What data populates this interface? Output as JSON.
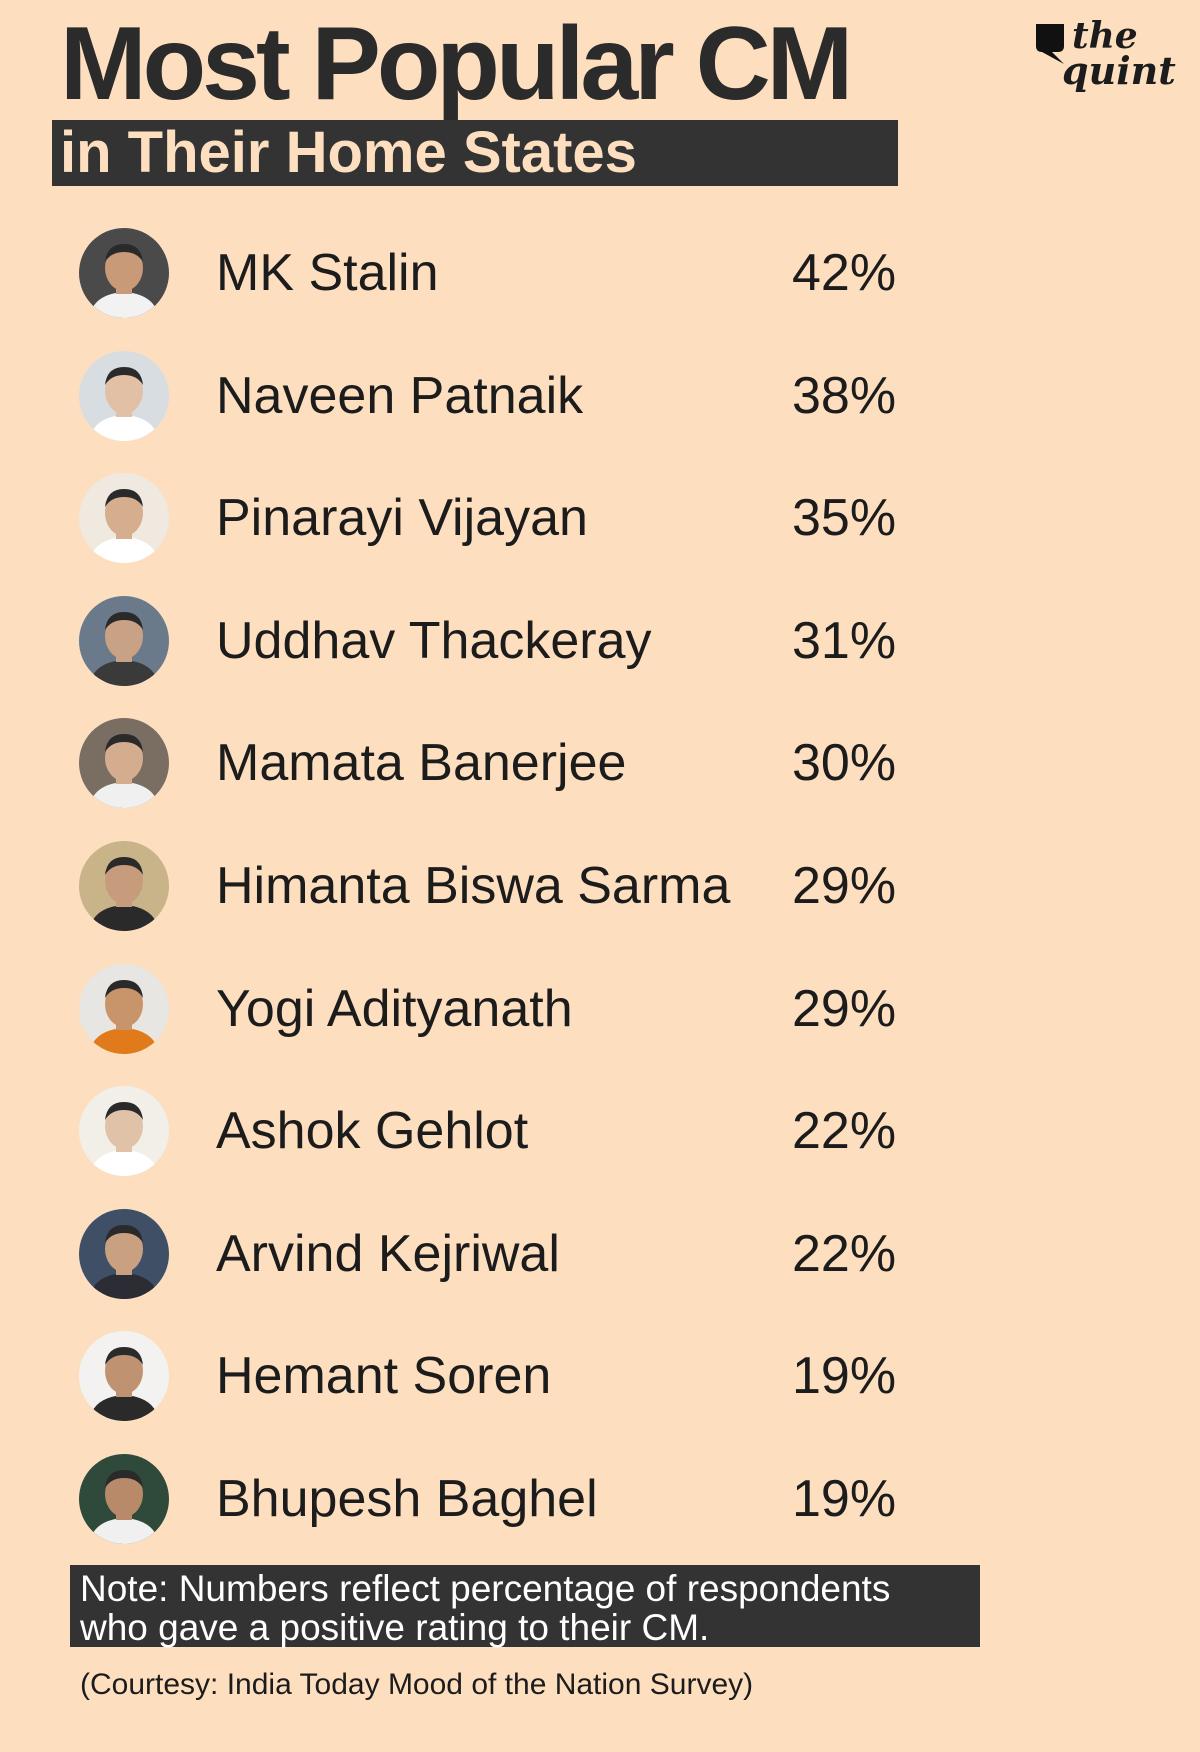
{
  "header": {
    "title": "Most Popular CM",
    "subtitle": "in Their Home States"
  },
  "logo": {
    "line1": "the",
    "line2": "quint"
  },
  "chart_data": {
    "type": "table",
    "title": "Most Popular CM",
    "subtitle": "in Their Home States",
    "categories": [
      "MK Stalin",
      "Naveen Patnaik",
      "Pinarayi Vijayan",
      "Uddhav Thackeray",
      "Mamata Banerjee",
      "Himanta Biswa Sarma",
      "Yogi Adityanath",
      "Ashok Gehlot",
      "Arvind Kejriwal",
      "Hemant Soren",
      "Bhupesh Baghel"
    ],
    "values": [
      42,
      38,
      35,
      31,
      30,
      29,
      29,
      22,
      22,
      19,
      19
    ],
    "value_labels": [
      "42%",
      "38%",
      "35%",
      "31%",
      "30%",
      "29%",
      "29%",
      "22%",
      "22%",
      "19%",
      "19%"
    ],
    "unit": "%"
  },
  "rows": [
    {
      "name": "MK Stalin",
      "value": "42%",
      "avatar": "portrait-icon"
    },
    {
      "name": "Naveen Patnaik",
      "value": "38%",
      "avatar": "portrait-icon"
    },
    {
      "name": "Pinarayi Vijayan",
      "value": "35%",
      "avatar": "portrait-icon"
    },
    {
      "name": "Uddhav Thackeray",
      "value": "31%",
      "avatar": "portrait-icon"
    },
    {
      "name": "Mamata Banerjee",
      "value": "30%",
      "avatar": "portrait-icon"
    },
    {
      "name": "Himanta Biswa Sarma",
      "value": "29%",
      "avatar": "portrait-icon"
    },
    {
      "name": "Yogi Adityanath",
      "value": "29%",
      "avatar": "portrait-icon"
    },
    {
      "name": "Ashok Gehlot",
      "value": "22%",
      "avatar": "portrait-icon"
    },
    {
      "name": "Arvind Kejriwal",
      "value": "22%",
      "avatar": "portrait-icon"
    },
    {
      "name": "Hemant Soren",
      "value": "19%",
      "avatar": "portrait-icon"
    },
    {
      "name": "Bhupesh Baghel",
      "value": "19%",
      "avatar": "portrait-icon"
    }
  ],
  "note": {
    "line1": "Note: Numbers reflect percentage of respondents",
    "line2": "who gave a positive rating to their CM."
  },
  "courtesy": "(Courtesy: India Today Mood of the Nation Survey)",
  "colors": {
    "background": "#FDDFC0",
    "dark_box": "#333333",
    "text": "#1c1c1c",
    "note_text": "#ffffff"
  }
}
